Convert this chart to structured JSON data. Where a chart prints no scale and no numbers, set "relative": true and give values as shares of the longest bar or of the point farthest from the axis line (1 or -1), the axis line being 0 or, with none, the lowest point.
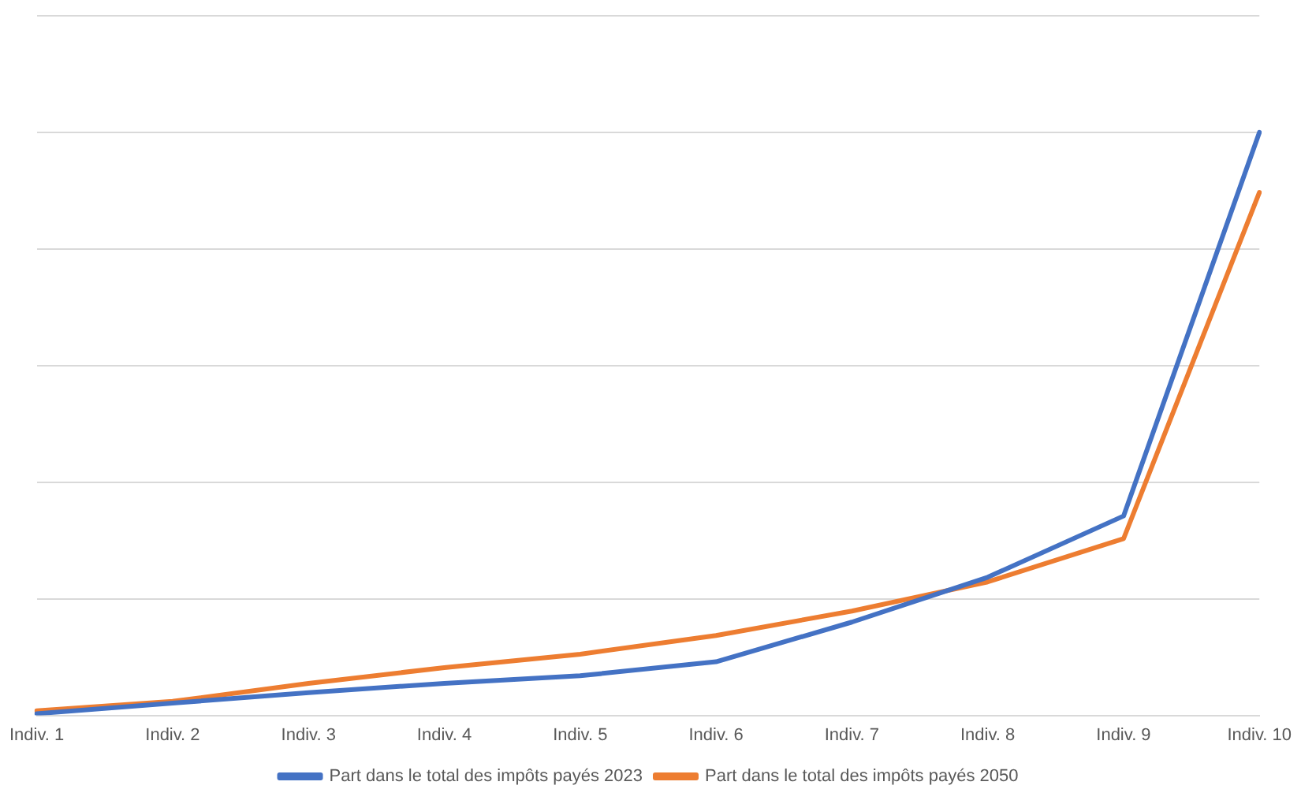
{
  "chart_data": {
    "type": "line",
    "relative": true,
    "categories": [
      "Indiv. 1",
      "Indiv. 2",
      "Indiv. 3",
      "Indiv. 4",
      "Indiv. 5",
      "Indiv. 6",
      "Indiv. 7",
      "Indiv. 8",
      "Indiv. 9",
      "Indiv. 10"
    ],
    "series": [
      {
        "name": "Part dans le total des impôts payés 2023",
        "color": "#4472c4",
        "values": [
          0.003,
          0.021,
          0.039,
          0.055,
          0.068,
          0.092,
          0.16,
          0.237,
          0.342,
          1
        ]
      },
      {
        "name": "Part dans le total des impôts payés 2050",
        "color": "#ed7d31",
        "values": [
          0.008,
          0.024,
          0.055,
          0.082,
          0.105,
          0.137,
          0.179,
          0.229,
          0.303,
          0.897
        ]
      }
    ],
    "grid": "y",
    "legend": "bottom",
    "marker": "none",
    "line_style": "solid"
  }
}
